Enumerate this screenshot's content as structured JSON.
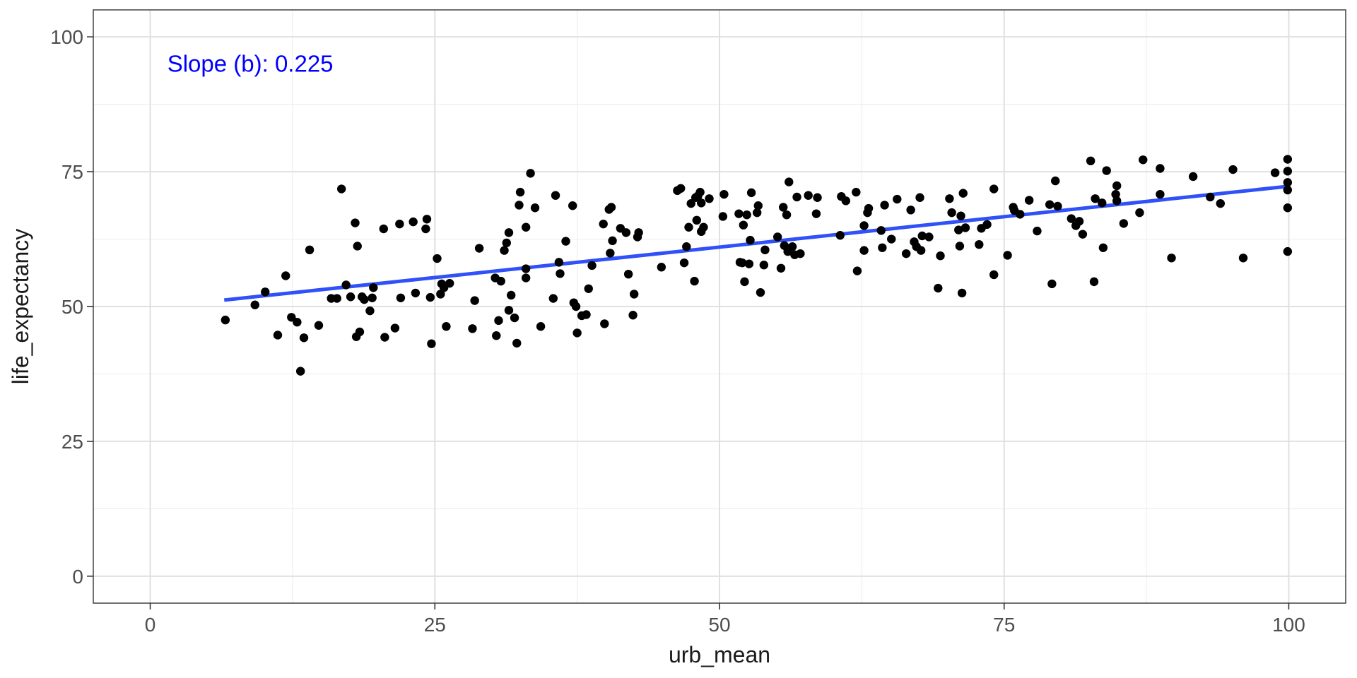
{
  "chart_data": {
    "type": "scatter",
    "title": "",
    "xlabel": "urb_mean",
    "ylabel": "life_expectancy",
    "xlim": [
      -5,
      105
    ],
    "ylim": [
      -5,
      105
    ],
    "x_ticks": [
      0,
      25,
      50,
      75,
      100
    ],
    "x_tick_labels": [
      "0",
      "25",
      "50",
      "75",
      "100"
    ],
    "y_ticks": [
      0,
      25,
      50,
      75,
      100
    ],
    "y_tick_labels": [
      "0",
      "25",
      "50",
      "75",
      "100"
    ],
    "grid": true,
    "annotation": {
      "text": "Slope (b): 0.225",
      "x": 1.5,
      "y": 95,
      "color": "#0000FF"
    },
    "fit_line": {
      "x": [
        6.5,
        100
      ],
      "y": [
        51.2,
        72.3
      ],
      "color": "#3050F8"
    },
    "point_color": "#000000",
    "points": [
      [
        6.6,
        47.5
      ],
      [
        9.2,
        50.3
      ],
      [
        10.1,
        52.7
      ],
      [
        11.2,
        44.7
      ],
      [
        11.9,
        55.7
      ],
      [
        12.4,
        48.0
      ],
      [
        12.9,
        47.1
      ],
      [
        13.2,
        38.0
      ],
      [
        13.5,
        44.2
      ],
      [
        14.0,
        60.5
      ],
      [
        14.8,
        46.5
      ],
      [
        15.9,
        51.5
      ],
      [
        16.4,
        51.5
      ],
      [
        16.8,
        71.8
      ],
      [
        17.2,
        54.0
      ],
      [
        17.6,
        51.8
      ],
      [
        18.0,
        65.5
      ],
      [
        18.1,
        44.4
      ],
      [
        18.2,
        61.2
      ],
      [
        18.4,
        45.3
      ],
      [
        18.6,
        51.8
      ],
      [
        18.8,
        51.3
      ],
      [
        19.3,
        49.2
      ],
      [
        19.5,
        51.6
      ],
      [
        19.6,
        53.5
      ],
      [
        20.5,
        64.4
      ],
      [
        20.6,
        44.3
      ],
      [
        21.5,
        46.0
      ],
      [
        21.9,
        65.3
      ],
      [
        22.0,
        51.6
      ],
      [
        23.1,
        65.7
      ],
      [
        23.3,
        52.5
      ],
      [
        24.2,
        64.4
      ],
      [
        24.3,
        66.2
      ],
      [
        24.6,
        51.7
      ],
      [
        24.7,
        43.1
      ],
      [
        25.2,
        58.9
      ],
      [
        25.5,
        52.3
      ],
      [
        25.6,
        54.2
      ],
      [
        25.8,
        53.5
      ],
      [
        26.0,
        46.3
      ],
      [
        26.3,
        54.3
      ],
      [
        28.3,
        45.9
      ],
      [
        28.5,
        51.1
      ],
      [
        28.9,
        60.8
      ],
      [
        30.3,
        55.3
      ],
      [
        30.4,
        44.6
      ],
      [
        30.6,
        47.4
      ],
      [
        30.8,
        54.7
      ],
      [
        31.1,
        60.4
      ],
      [
        31.3,
        61.8
      ],
      [
        31.5,
        63.7
      ],
      [
        31.5,
        49.3
      ],
      [
        31.7,
        52.1
      ],
      [
        32.0,
        47.9
      ],
      [
        32.2,
        43.2
      ],
      [
        32.4,
        68.8
      ],
      [
        32.5,
        71.2
      ],
      [
        33.0,
        64.7
      ],
      [
        33.0,
        57.0
      ],
      [
        33.0,
        55.3
      ],
      [
        33.4,
        74.7
      ],
      [
        33.8,
        68.3
      ],
      [
        34.3,
        46.3
      ],
      [
        35.4,
        51.5
      ],
      [
        35.6,
        70.6
      ],
      [
        35.9,
        58.2
      ],
      [
        36.0,
        56.1
      ],
      [
        36.5,
        62.1
      ],
      [
        37.1,
        68.7
      ],
      [
        37.2,
        50.7
      ],
      [
        37.4,
        50.0
      ],
      [
        37.5,
        45.1
      ],
      [
        37.9,
        48.3
      ],
      [
        38.3,
        48.5
      ],
      [
        38.5,
        53.3
      ],
      [
        38.8,
        57.6
      ],
      [
        39.8,
        65.3
      ],
      [
        39.9,
        46.8
      ],
      [
        40.3,
        68.0
      ],
      [
        40.4,
        59.9
      ],
      [
        40.5,
        68.4
      ],
      [
        40.6,
        62.2
      ],
      [
        41.3,
        64.5
      ],
      [
        41.8,
        63.7
      ],
      [
        42.0,
        56.0
      ],
      [
        42.4,
        48.4
      ],
      [
        42.5,
        52.3
      ],
      [
        42.8,
        62.9
      ],
      [
        42.9,
        63.7
      ],
      [
        44.9,
        57.3
      ],
      [
        46.3,
        71.5
      ],
      [
        46.6,
        71.9
      ],
      [
        46.9,
        58.1
      ],
      [
        47.1,
        61.1
      ],
      [
        47.3,
        64.7
      ],
      [
        47.5,
        69.1
      ],
      [
        47.8,
        54.7
      ],
      [
        47.9,
        70.2
      ],
      [
        48.0,
        66.0
      ],
      [
        48.1,
        70.5
      ],
      [
        48.3,
        71.2
      ],
      [
        48.4,
        69.2
      ],
      [
        48.4,
        63.9
      ],
      [
        48.6,
        64.7
      ],
      [
        49.1,
        70.0
      ],
      [
        50.3,
        66.7
      ],
      [
        50.4,
        70.8
      ],
      [
        51.7,
        67.2
      ],
      [
        51.8,
        58.2
      ],
      [
        52.0,
        58.1
      ],
      [
        52.1,
        65.1
      ],
      [
        52.2,
        54.6
      ],
      [
        52.4,
        67.0
      ],
      [
        52.6,
        57.9
      ],
      [
        52.7,
        62.3
      ],
      [
        52.8,
        71.1
      ],
      [
        53.3,
        67.4
      ],
      [
        53.4,
        68.7
      ],
      [
        53.6,
        52.6
      ],
      [
        53.9,
        57.7
      ],
      [
        54.0,
        60.5
      ],
      [
        55.1,
        62.9
      ],
      [
        55.4,
        57.1
      ],
      [
        55.6,
        68.4
      ],
      [
        55.7,
        61.3
      ],
      [
        55.9,
        67.0
      ],
      [
        56.0,
        60.2
      ],
      [
        56.1,
        73.1
      ],
      [
        56.4,
        61.1
      ],
      [
        56.6,
        59.6
      ],
      [
        56.8,
        70.3
      ],
      [
        57.1,
        59.8
      ],
      [
        57.8,
        70.6
      ],
      [
        58.5,
        67.2
      ],
      [
        58.6,
        70.2
      ],
      [
        60.6,
        63.2
      ],
      [
        60.7,
        70.4
      ],
      [
        61.1,
        69.6
      ],
      [
        62.0,
        71.2
      ],
      [
        62.1,
        56.6
      ],
      [
        62.7,
        60.4
      ],
      [
        62.7,
        65.0
      ],
      [
        63.0,
        67.4
      ],
      [
        63.1,
        68.2
      ],
      [
        64.2,
        64.1
      ],
      [
        64.3,
        60.9
      ],
      [
        64.5,
        68.8
      ],
      [
        65.1,
        62.5
      ],
      [
        65.6,
        69.9
      ],
      [
        66.4,
        59.8
      ],
      [
        66.8,
        67.9
      ],
      [
        67.1,
        62.0
      ],
      [
        67.3,
        61.1
      ],
      [
        67.6,
        70.2
      ],
      [
        67.7,
        60.4
      ],
      [
        67.8,
        63.1
      ],
      [
        68.4,
        62.9
      ],
      [
        69.2,
        53.4
      ],
      [
        69.4,
        59.4
      ],
      [
        70.2,
        70.0
      ],
      [
        70.4,
        67.4
      ],
      [
        71.0,
        64.2
      ],
      [
        71.1,
        61.2
      ],
      [
        71.2,
        66.8
      ],
      [
        71.3,
        52.5
      ],
      [
        71.4,
        71.0
      ],
      [
        71.6,
        64.6
      ],
      [
        72.8,
        61.5
      ],
      [
        73.0,
        64.5
      ],
      [
        73.5,
        65.2
      ],
      [
        74.1,
        71.8
      ],
      [
        74.1,
        55.9
      ],
      [
        75.3,
        59.5
      ],
      [
        75.8,
        68.4
      ],
      [
        75.9,
        67.8
      ],
      [
        76.4,
        67.1
      ],
      [
        77.2,
        69.7
      ],
      [
        77.9,
        64.0
      ],
      [
        79.0,
        68.9
      ],
      [
        79.2,
        54.2
      ],
      [
        79.5,
        73.3
      ],
      [
        79.7,
        68.6
      ],
      [
        80.9,
        66.3
      ],
      [
        81.3,
        65.0
      ],
      [
        81.6,
        65.8
      ],
      [
        81.9,
        63.4
      ],
      [
        82.6,
        77.0
      ],
      [
        82.9,
        54.6
      ],
      [
        83.0,
        70.0
      ],
      [
        83.6,
        69.2
      ],
      [
        83.7,
        60.9
      ],
      [
        84.0,
        75.2
      ],
      [
        84.8,
        70.8
      ],
      [
        84.9,
        72.4
      ],
      [
        84.9,
        69.6
      ],
      [
        85.5,
        65.4
      ],
      [
        86.9,
        67.4
      ],
      [
        87.2,
        77.2
      ],
      [
        88.7,
        70.8
      ],
      [
        88.7,
        75.6
      ],
      [
        89.7,
        59.0
      ],
      [
        91.6,
        74.1
      ],
      [
        93.1,
        70.3
      ],
      [
        94.0,
        69.1
      ],
      [
        95.1,
        75.4
      ],
      [
        96.0,
        59.0
      ],
      [
        98.8,
        74.8
      ],
      [
        99.9,
        77.3
      ],
      [
        99.9,
        75.1
      ],
      [
        99.9,
        73.0
      ],
      [
        99.9,
        71.6
      ],
      [
        99.9,
        68.3
      ],
      [
        99.9,
        60.2
      ]
    ]
  }
}
